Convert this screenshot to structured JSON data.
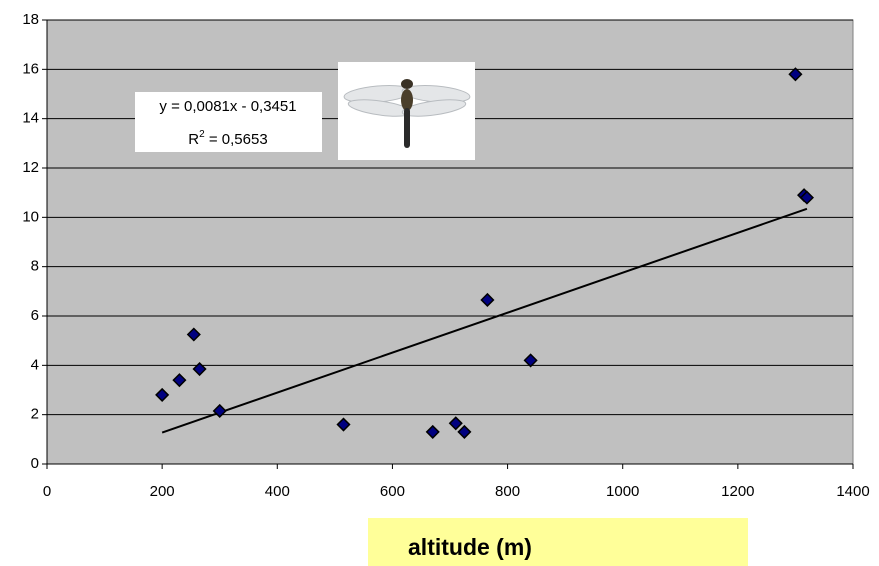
{
  "chart_data": {
    "type": "scatter",
    "x": [
      200,
      230,
      255,
      265,
      300,
      515,
      670,
      710,
      725,
      765,
      840,
      1300,
      1315,
      1320
    ],
    "values": [
      2.8,
      3.4,
      5.25,
      3.85,
      2.15,
      1.6,
      1.3,
      1.65,
      1.3,
      6.65,
      4.2,
      15.8,
      10.9,
      10.8
    ],
    "color": "#000080",
    "xlim": [
      0,
      1400
    ],
    "xticks": [
      0,
      200,
      400,
      600,
      800,
      1000,
      1200,
      1400
    ],
    "ylim": [
      0,
      18
    ],
    "yticks": [
      0,
      2,
      4,
      6,
      8,
      10,
      12,
      14,
      16,
      18
    ],
    "grid": true,
    "xlabel": "altitude (m)",
    "trendline": {
      "x": [
        200,
        1320
      ],
      "values": [
        1.2749,
        10.3469
      ],
      "color": "#000000"
    },
    "equation": "y = 0,0081x - 0,3451",
    "r2_label": {
      "symbol": "R",
      "exponent": "2",
      "text": " = 0,5653"
    }
  }
}
